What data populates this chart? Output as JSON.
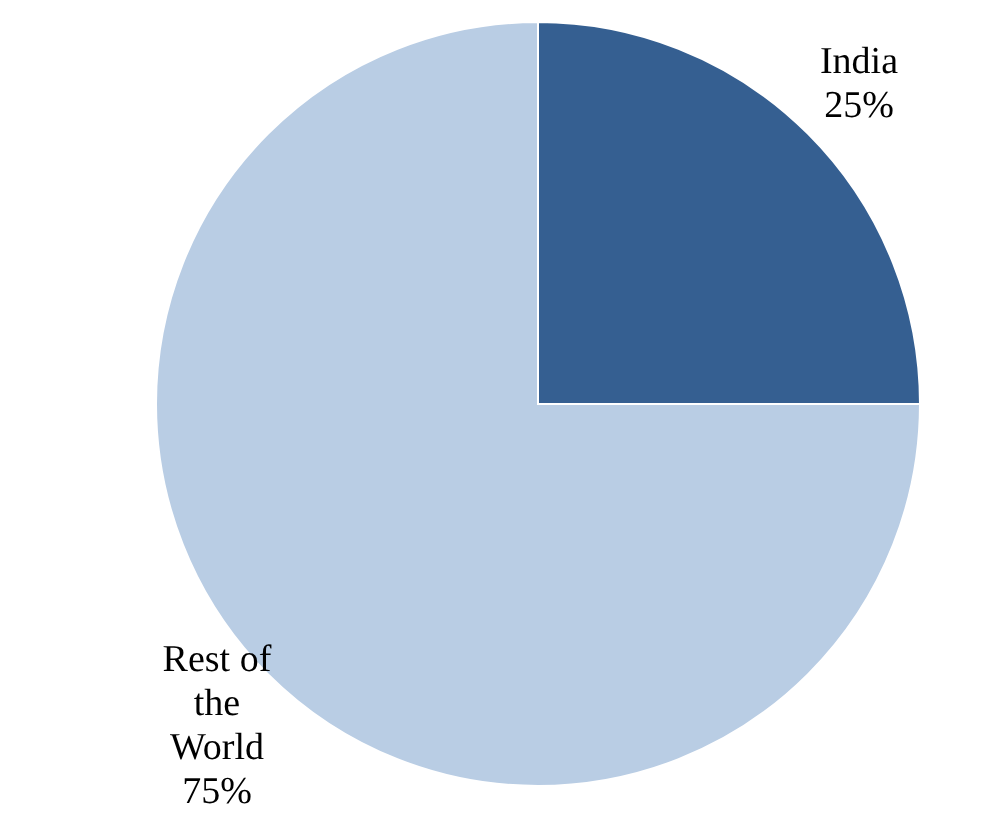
{
  "chart_data": {
    "type": "pie",
    "categories": [
      "India",
      "Rest of the World"
    ],
    "values": [
      25,
      75
    ],
    "value_labels": [
      "25%",
      "75%"
    ],
    "colors": [
      "#355f91",
      "#b9cde4"
    ],
    "legend": false
  }
}
